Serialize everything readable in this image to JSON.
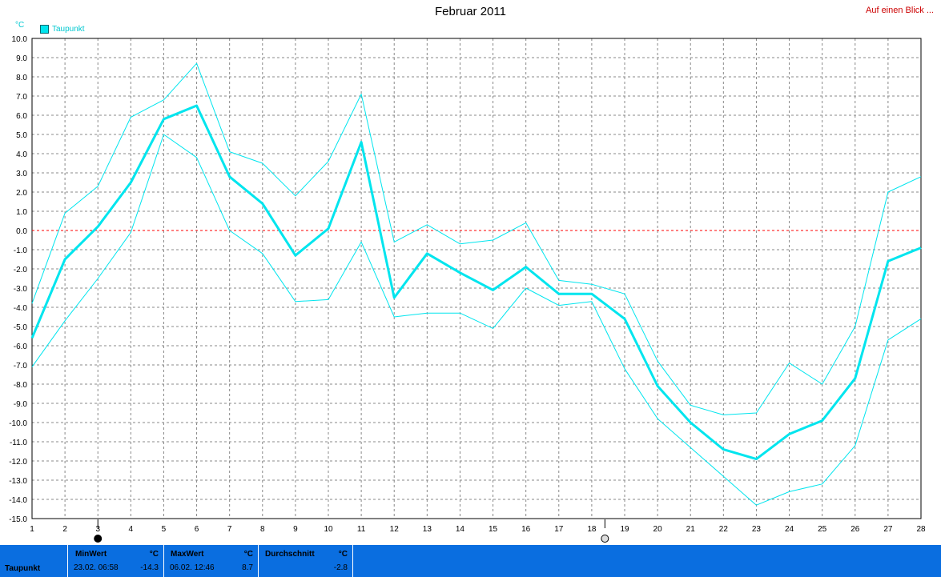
{
  "title": "Februar 2011",
  "overview_link": "Auf einen Blick ...",
  "unit_label": "°C",
  "legend": {
    "label": "Taupunkt"
  },
  "colors": {
    "series": "#00e5ee",
    "zero_line": "#ff0000",
    "grid": "#888888",
    "footer_bg": "#0a6ee0"
  },
  "chart_data": {
    "type": "line",
    "x": [
      1,
      2,
      3,
      4,
      5,
      6,
      7,
      8,
      9,
      10,
      11,
      12,
      13,
      14,
      15,
      16,
      17,
      18,
      19,
      20,
      21,
      22,
      23,
      24,
      25,
      26,
      27,
      28
    ],
    "xlim": [
      1,
      28
    ],
    "ylim": [
      -15,
      10
    ],
    "y_ticks": [
      "10.0",
      "9.0",
      "8.0",
      "7.0",
      "6.0",
      "5.0",
      "4.0",
      "3.0",
      "2.0",
      "1.0",
      "0.0",
      "-1.0",
      "-2.0",
      "-3.0",
      "-4.0",
      "-5.0",
      "-6.0",
      "-7.0",
      "-8.0",
      "-9.0",
      "-10.0",
      "-11.0",
      "-12.0",
      "-13.0",
      "-14.0",
      "-15.0"
    ],
    "x_ticks": [
      "1",
      "2",
      "3",
      "4",
      "5",
      "6",
      "7",
      "8",
      "9",
      "10",
      "11",
      "12",
      "13",
      "14",
      "15",
      "16",
      "17",
      "18",
      "19",
      "20",
      "21",
      "22",
      "23",
      "24",
      "25",
      "26",
      "27",
      "28"
    ],
    "grid": true,
    "series": [
      {
        "name": "Taupunkt",
        "role": "max",
        "values": [
          -3.8,
          0.9,
          2.3,
          5.9,
          6.8,
          8.7,
          4.1,
          3.5,
          1.8,
          3.6,
          7.1,
          -0.6,
          0.3,
          -0.7,
          -0.5,
          0.4,
          -2.6,
          -2.8,
          -3.3,
          -6.8,
          -9.1,
          -9.6,
          -9.5,
          -6.9,
          -8.0,
          -5.0,
          2.0,
          2.8
        ]
      },
      {
        "name": "Taupunkt",
        "role": "mean",
        "values": [
          -5.6,
          -1.5,
          0.2,
          2.5,
          5.8,
          6.5,
          2.8,
          1.4,
          -1.3,
          0.1,
          4.6,
          -3.5,
          -1.2,
          -2.2,
          -3.1,
          -1.9,
          -3.3,
          -3.3,
          -4.6,
          -8.1,
          -10.0,
          -11.4,
          -11.9,
          -10.6,
          -9.9,
          -7.7,
          -1.6,
          -0.9
        ]
      },
      {
        "name": "Taupunkt",
        "role": "min",
        "values": [
          -7.1,
          -4.7,
          -2.5,
          -0.1,
          5.0,
          3.8,
          0.0,
          -1.2,
          -3.7,
          -3.6,
          -0.6,
          -4.5,
          -4.3,
          -4.3,
          -5.1,
          -3.0,
          -3.9,
          -3.7,
          -7.2,
          -9.8,
          -11.3,
          -12.8,
          -14.3,
          -13.6,
          -13.2,
          -11.2,
          -5.7,
          -4.6
        ]
      }
    ],
    "markers": [
      {
        "day": 3,
        "type": "full-moon"
      },
      {
        "day": 18.4,
        "type": "new-moon"
      }
    ]
  },
  "footer": {
    "series_label": "Taupunkt",
    "min": {
      "header": "MinWert",
      "unit": "°C",
      "date": "23.02.  06:58",
      "value": "-14.3"
    },
    "max": {
      "header": "MaxWert",
      "unit": "°C",
      "date": "06.02.  12:46",
      "value": "8.7"
    },
    "avg": {
      "header": "Durchschnitt",
      "unit": "°C",
      "value": "-2.8"
    }
  }
}
